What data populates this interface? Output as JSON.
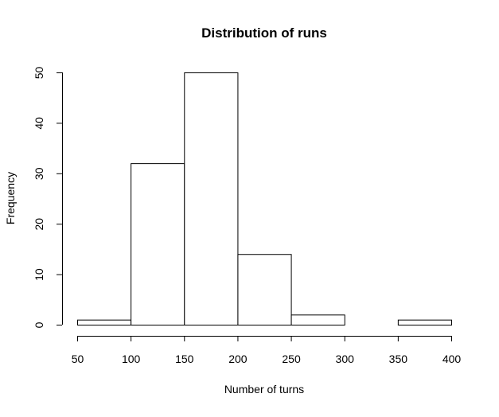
{
  "chart_data": {
    "type": "bar",
    "subtype": "histogram",
    "title": "Distribution of runs",
    "xlabel": "Number of turns",
    "ylabel": "Frequency",
    "bins": [
      {
        "x0": 50,
        "x1": 100,
        "count": 1
      },
      {
        "x0": 100,
        "x1": 150,
        "count": 32
      },
      {
        "x0": 150,
        "x1": 200,
        "count": 50
      },
      {
        "x0": 200,
        "x1": 250,
        "count": 14
      },
      {
        "x0": 250,
        "x1": 300,
        "count": 2
      },
      {
        "x0": 300,
        "x1": 350,
        "count": 0
      },
      {
        "x0": 350,
        "x1": 400,
        "count": 1
      }
    ],
    "xlim": [
      50,
      400
    ],
    "ylim": [
      0,
      50
    ],
    "x_ticks": [
      50,
      100,
      150,
      200,
      250,
      300,
      350,
      400
    ],
    "y_ticks": [
      0,
      10,
      20,
      30,
      40,
      50
    ],
    "grid": false,
    "legend": "none",
    "colors": {
      "bar_fill": "#ffffff",
      "bar_stroke": "#000000",
      "axis": "#000000"
    }
  }
}
